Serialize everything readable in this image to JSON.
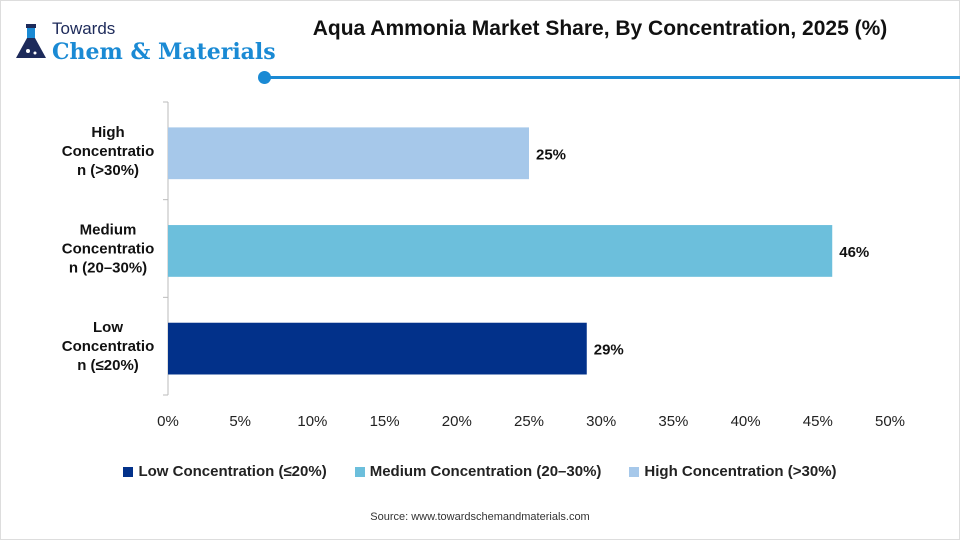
{
  "logo": {
    "top": "Towards",
    "main": "Chem & Materials"
  },
  "title": "Aqua Ammonia Market Share, By Concentration, 2025 (%)",
  "source": "Source: www.towardschemandmaterials.com",
  "chart_data": {
    "type": "bar",
    "orientation": "horizontal",
    "title": "Aqua Ammonia Market Share, By Concentration, 2025 (%)",
    "categories": [
      "High Concentration (>30%)",
      "Medium Concentration (20–30%)",
      "Low Concentration (≤20%)"
    ],
    "category_label_lines": [
      [
        "High",
        "Concentratio",
        "n (>30%)"
      ],
      [
        "Medium",
        "Concentratio",
        "n (20–30%)"
      ],
      [
        "Low",
        "Concentratio",
        "n (≤20%)"
      ]
    ],
    "values": [
      25,
      46,
      29
    ],
    "data_labels": [
      "25%",
      "46%",
      "29%"
    ],
    "colors": [
      "#a6c8ea",
      "#6cbfdc",
      "#02318a"
    ],
    "xlim": [
      0,
      50
    ],
    "xticks": [
      "0%",
      "5%",
      "10%",
      "15%",
      "20%",
      "25%",
      "30%",
      "35%",
      "40%",
      "45%",
      "50%"
    ],
    "grid": false,
    "legend_position": "bottom",
    "legend": [
      {
        "label": "Low Concentration (≤20%)",
        "color": "#02318a"
      },
      {
        "label": "Medium Concentration (20–30%)",
        "color": "#6cbfdc"
      },
      {
        "label": "High Concentration (>30%)",
        "color": "#a6c8ea"
      }
    ]
  }
}
